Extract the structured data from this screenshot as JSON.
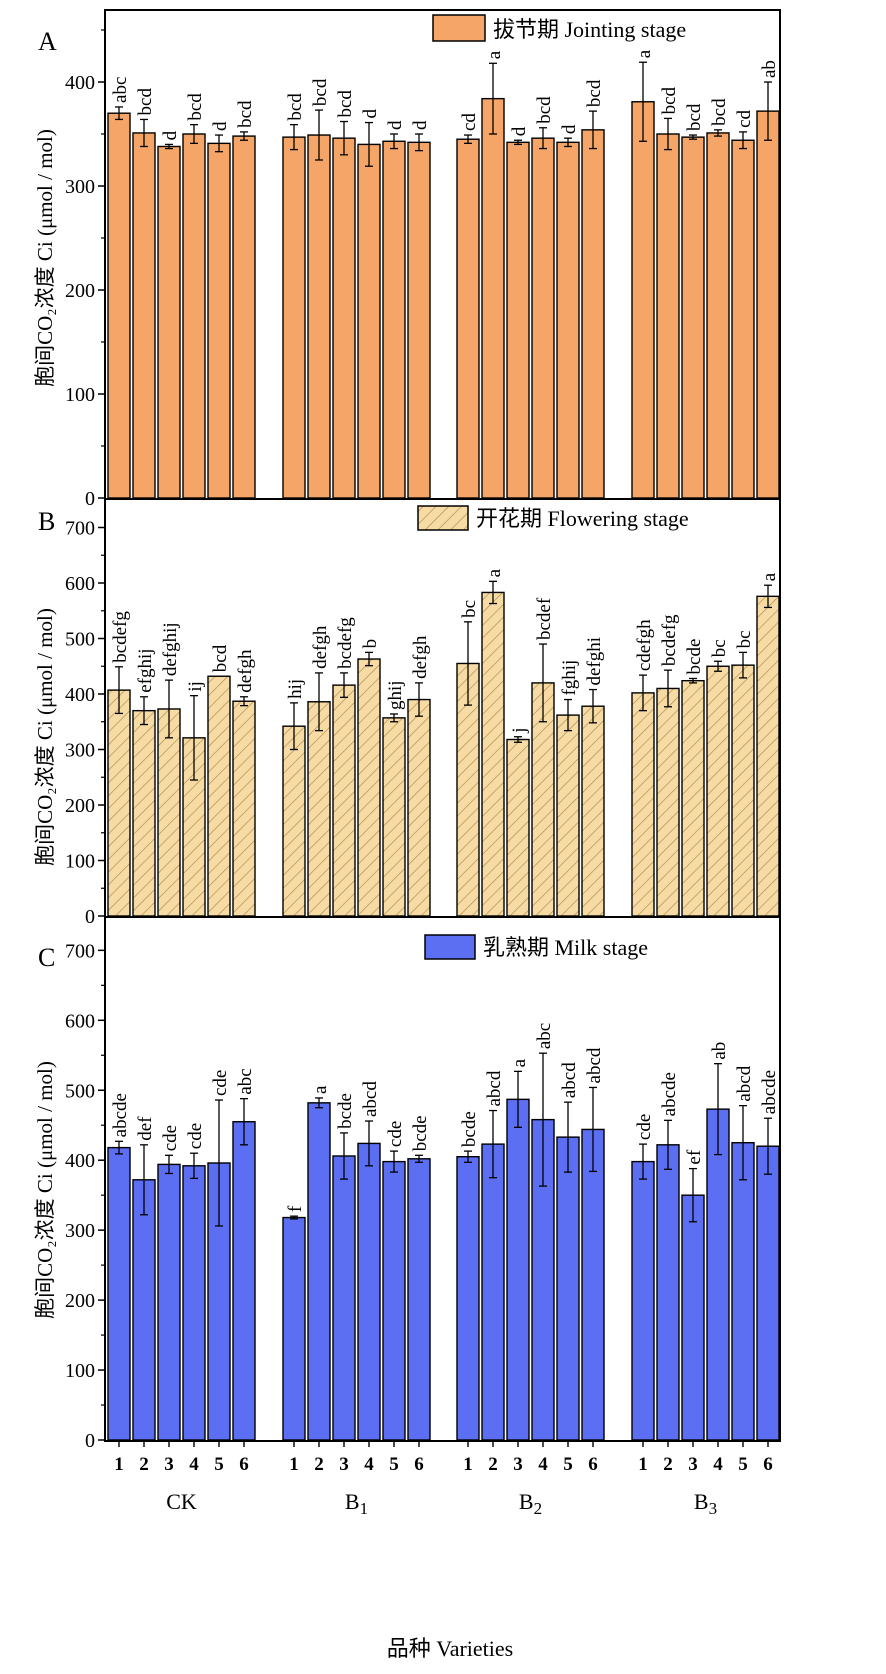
{
  "figure": {
    "xlabel": "品种 Varieties",
    "groups": [
      "CK",
      "B1",
      "B2",
      "B3"
    ],
    "bar_ticks": [
      "1",
      "2",
      "3",
      "4",
      "5",
      "6"
    ]
  },
  "colors": {
    "jointing": "#f4a567",
    "flowering": "#f6dca4",
    "flowering_hatch": "#b0884a",
    "milk": "#5c6ef2",
    "frame": "#000000"
  },
  "chart_data": [
    {
      "type": "bar",
      "panel": "A",
      "legend": "拔节期 Jointing stage",
      "ylabel": "胞间CO₂浓度 Ci (μmol / mol)",
      "ylim": [
        0,
        470
      ],
      "yticks": [
        0,
        100,
        200,
        300,
        400
      ],
      "categories": [
        "CK",
        "B1",
        "B2",
        "B3"
      ],
      "groups": [
        {
          "name": "CK",
          "bars": [
            {
              "x": "1",
              "value": 370,
              "err": 6,
              "label": "abc"
            },
            {
              "x": "2",
              "value": 351,
              "err": 13,
              "label": "bcd"
            },
            {
              "x": "3",
              "value": 338,
              "err": 2,
              "label": "d"
            },
            {
              "x": "4",
              "value": 350,
              "err": 9,
              "label": "bcd"
            },
            {
              "x": "5",
              "value": 341,
              "err": 8,
              "label": "d"
            },
            {
              "x": "6",
              "value": 348,
              "err": 4,
              "label": "bcd"
            }
          ]
        },
        {
          "name": "B1",
          "bars": [
            {
              "x": "1",
              "value": 347,
              "err": 12,
              "label": "bcd"
            },
            {
              "x": "2",
              "value": 349,
              "err": 24,
              "label": "bcd"
            },
            {
              "x": "3",
              "value": 346,
              "err": 16,
              "label": "bcd"
            },
            {
              "x": "4",
              "value": 340,
              "err": 21,
              "label": "d"
            },
            {
              "x": "5",
              "value": 343,
              "err": 7,
              "label": "d"
            },
            {
              "x": "6",
              "value": 342,
              "err": 8,
              "label": "d"
            }
          ]
        },
        {
          "name": "B2",
          "bars": [
            {
              "x": "1",
              "value": 345,
              "err": 4,
              "label": "cd"
            },
            {
              "x": "2",
              "value": 384,
              "err": 34,
              "label": "a"
            },
            {
              "x": "3",
              "value": 342,
              "err": 2,
              "label": "d"
            },
            {
              "x": "4",
              "value": 346,
              "err": 10,
              "label": "bcd"
            },
            {
              "x": "5",
              "value": 342,
              "err": 4,
              "label": "d"
            },
            {
              "x": "6",
              "value": 354,
              "err": 18,
              "label": "bcd"
            }
          ]
        },
        {
          "name": "B3",
          "bars": [
            {
              "x": "1",
              "value": 381,
              "err": 38,
              "label": "a"
            },
            {
              "x": "2",
              "value": 350,
              "err": 15,
              "label": "bcd"
            },
            {
              "x": "3",
              "value": 347,
              "err": 2,
              "label": "bcd"
            },
            {
              "x": "4",
              "value": 351,
              "err": 3,
              "label": "bcd"
            },
            {
              "x": "5",
              "value": 344,
              "err": 8,
              "label": "cd"
            },
            {
              "x": "6",
              "value": 372,
              "err": 28,
              "label": "ab"
            }
          ]
        }
      ]
    },
    {
      "type": "bar",
      "panel": "B",
      "legend": "开花期 Flowering stage",
      "ylabel": "胞间CO₂浓度 Ci (μmol / mol)",
      "ylim": [
        0,
        750
      ],
      "yticks": [
        0,
        100,
        200,
        300,
        400,
        500,
        600,
        700
      ],
      "categories": [
        "CK",
        "B1",
        "B2",
        "B3"
      ],
      "groups": [
        {
          "name": "CK",
          "bars": [
            {
              "x": "1",
              "value": 407,
              "err": 42,
              "label": "bcdefg"
            },
            {
              "x": "2",
              "value": 370,
              "err": 25,
              "label": "efghij"
            },
            {
              "x": "3",
              "value": 373,
              "err": 52,
              "label": "defghij"
            },
            {
              "x": "4",
              "value": 321,
              "err": 76,
              "label": "ij"
            },
            {
              "x": "5",
              "value": 432,
              "err": 0,
              "label": "bcd"
            },
            {
              "x": "6",
              "value": 387,
              "err": 8,
              "label": "defgh"
            }
          ]
        },
        {
          "name": "B1",
          "bars": [
            {
              "x": "1",
              "value": 342,
              "err": 42,
              "label": "hij"
            },
            {
              "x": "2",
              "value": 386,
              "err": 52,
              "label": "defgh"
            },
            {
              "x": "3",
              "value": 416,
              "err": 22,
              "label": "bcdefg"
            },
            {
              "x": "4",
              "value": 463,
              "err": 12,
              "label": "b"
            },
            {
              "x": "5",
              "value": 357,
              "err": 7,
              "label": "ghij"
            },
            {
              "x": "6",
              "value": 390,
              "err": 30,
              "label": "defgh"
            }
          ]
        },
        {
          "name": "B2",
          "bars": [
            {
              "x": "1",
              "value": 455,
              "err": 75,
              "label": "bc"
            },
            {
              "x": "2",
              "value": 583,
              "err": 20,
              "label": "a"
            },
            {
              "x": "3",
              "value": 318,
              "err": 5,
              "label": "j"
            },
            {
              "x": "4",
              "value": 420,
              "err": 70,
              "label": "bcdef"
            },
            {
              "x": "5",
              "value": 362,
              "err": 28,
              "label": "fghij"
            },
            {
              "x": "6",
              "value": 378,
              "err": 30,
              "label": "defghi"
            }
          ]
        },
        {
          "name": "B3",
          "bars": [
            {
              "x": "1",
              "value": 402,
              "err": 32,
              "label": "cdefgh"
            },
            {
              "x": "2",
              "value": 410,
              "err": 33,
              "label": "bcdefg"
            },
            {
              "x": "3",
              "value": 424,
              "err": 4,
              "label": "bcde"
            },
            {
              "x": "4",
              "value": 450,
              "err": 9,
              "label": "bc"
            },
            {
              "x": "5",
              "value": 452,
              "err": 23,
              "label": "bc"
            },
            {
              "x": "6",
              "value": 576,
              "err": 20,
              "label": "a"
            }
          ]
        }
      ]
    },
    {
      "type": "bar",
      "panel": "C",
      "legend": "乳熟期 Milk stage",
      "ylabel": "胞间CO₂浓度 Ci (μmol / mol)",
      "xlabel": "品种 Varieties",
      "ylim": [
        0,
        750
      ],
      "yticks": [
        0,
        100,
        200,
        300,
        400,
        500,
        600,
        700
      ],
      "categories": [
        "CK",
        "B1",
        "B2",
        "B3"
      ],
      "groups": [
        {
          "name": "CK",
          "bars": [
            {
              "x": "1",
              "value": 418,
              "err": 9,
              "label": "abcde"
            },
            {
              "x": "2",
              "value": 372,
              "err": 50,
              "label": "def"
            },
            {
              "x": "3",
              "value": 394,
              "err": 13,
              "label": "cde"
            },
            {
              "x": "4",
              "value": 392,
              "err": 18,
              "label": "cde"
            },
            {
              "x": "5",
              "value": 396,
              "err": 90,
              "label": "cde"
            },
            {
              "x": "6",
              "value": 455,
              "err": 33,
              "label": "abc"
            }
          ]
        },
        {
          "name": "B1",
          "bars": [
            {
              "x": "1",
              "value": 318,
              "err": 2,
              "label": "f"
            },
            {
              "x": "2",
              "value": 482,
              "err": 7,
              "label": "a"
            },
            {
              "x": "3",
              "value": 406,
              "err": 33,
              "label": "bcde"
            },
            {
              "x": "4",
              "value": 424,
              "err": 32,
              "label": "abcd"
            },
            {
              "x": "5",
              "value": 398,
              "err": 15,
              "label": "cde"
            },
            {
              "x": "6",
              "value": 402,
              "err": 5,
              "label": "bcde"
            }
          ]
        },
        {
          "name": "B2",
          "bars": [
            {
              "x": "1",
              "value": 405,
              "err": 8,
              "label": "bcde"
            },
            {
              "x": "2",
              "value": 423,
              "err": 48,
              "label": "abcd"
            },
            {
              "x": "3",
              "value": 487,
              "err": 40,
              "label": "a"
            },
            {
              "x": "4",
              "value": 458,
              "err": 95,
              "label": "abc"
            },
            {
              "x": "5",
              "value": 433,
              "err": 50,
              "label": "abcd"
            },
            {
              "x": "6",
              "value": 444,
              "err": 60,
              "label": "abcd"
            }
          ]
        },
        {
          "name": "B3",
          "bars": [
            {
              "x": "1",
              "value": 398,
              "err": 25,
              "label": "cde"
            },
            {
              "x": "2",
              "value": 422,
              "err": 35,
              "label": "abcde"
            },
            {
              "x": "3",
              "value": 350,
              "err": 38,
              "label": "ef"
            },
            {
              "x": "4",
              "value": 473,
              "err": 65,
              "label": "ab"
            },
            {
              "x": "5",
              "value": 425,
              "err": 53,
              "label": "abcd"
            },
            {
              "x": "6",
              "value": 420,
              "err": 40,
              "label": "abcde"
            }
          ]
        }
      ]
    }
  ]
}
